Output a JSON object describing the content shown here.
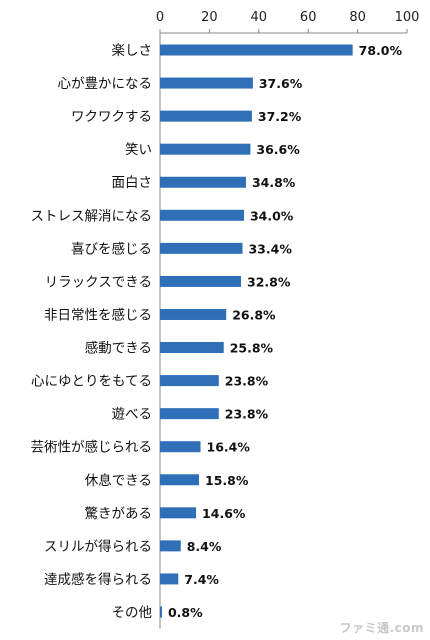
{
  "chart_data": {
    "type": "bar",
    "orientation": "horizontal",
    "categories": [
      "楽しさ",
      "心が豊かになる",
      "ワクワクする",
      "笑い",
      "面白さ",
      "ストレス解消になる",
      "喜びを感じる",
      "リラックスできる",
      "非日常性を感じる",
      "感動できる",
      "心にゆとりをもてる",
      "遊べる",
      "芸術性が感じられる",
      "休息できる",
      "驚きがある",
      "スリルが得られる",
      "達成感を得られる",
      "その他"
    ],
    "values": [
      78.0,
      37.6,
      37.2,
      36.6,
      34.8,
      34.0,
      33.4,
      32.8,
      26.8,
      25.8,
      23.8,
      23.8,
      16.4,
      15.8,
      14.6,
      8.4,
      7.4,
      0.8
    ],
    "value_labels": [
      "78.0%",
      "37.6%",
      "37.2%",
      "36.6%",
      "34.8%",
      "34.0%",
      "33.4%",
      "32.8%",
      "26.8%",
      "25.8%",
      "23.8%",
      "23.8%",
      "16.4%",
      "15.8%",
      "14.6%",
      "8.4%",
      "7.4%",
      "0.8%"
    ],
    "xticks": [
      "0",
      "20",
      "40",
      "60",
      "80",
      "100"
    ],
    "xlim": [
      0,
      100
    ],
    "axis_position": "top",
    "grid": false,
    "bar_color": "#2e6fb7",
    "title": "",
    "xlabel": "",
    "ylabel": ""
  },
  "watermark": {
    "text": "ファミ通.com"
  }
}
